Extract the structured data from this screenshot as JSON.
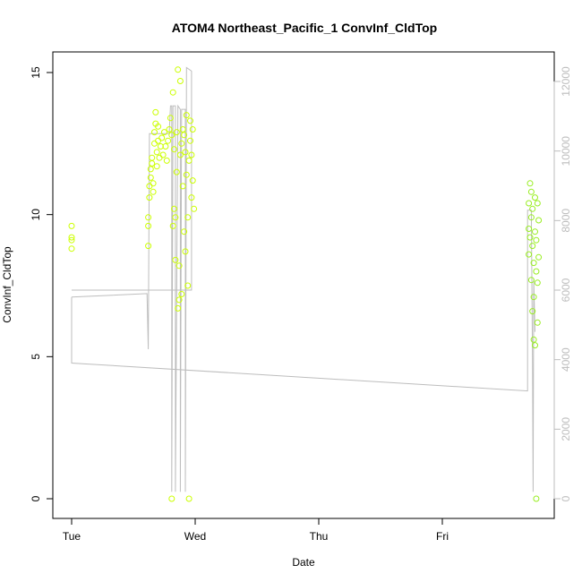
{
  "chart_data": {
    "type": "scatter",
    "title": "ATOM4 Northeast_Pacific_1 ConvInf_CldTop",
    "xlabel": "Date",
    "ylabel": "ConvInf_CldTop",
    "x_ticks": [
      "Tue",
      "Wed",
      "Thu",
      "Fri"
    ],
    "x_range_days": [
      0,
      3.78
    ],
    "ylim": [
      0,
      15.5
    ],
    "y_ticks": [
      0,
      5,
      10,
      15
    ],
    "y2lim": [
      0,
      12400
    ],
    "y2_ticks": [
      0,
      2000,
      4000,
      6000,
      8000,
      10000,
      12000
    ],
    "grid": false,
    "legend": "none",
    "colors": {
      "points_early": "#ccff00",
      "points_late": "#99ee22",
      "line": "#bdbdbd",
      "axes": "#000000",
      "right_axis": "#bdbdbd"
    },
    "series": [
      {
        "values_note_x_days_y_value": true,
        "points": [
          [
            0.0,
            9.6
          ],
          [
            0.0,
            9.2
          ],
          [
            0.0,
            9.1
          ],
          [
            0.0,
            8.8
          ],
          [
            0.62,
            8.9
          ],
          [
            0.62,
            9.6
          ],
          [
            0.62,
            9.9
          ],
          [
            0.63,
            10.6
          ],
          [
            0.63,
            11.0
          ],
          [
            0.64,
            11.3
          ],
          [
            0.64,
            11.6
          ],
          [
            0.65,
            12.0
          ],
          [
            0.65,
            11.8
          ],
          [
            0.66,
            10.8
          ],
          [
            0.66,
            11.1
          ],
          [
            0.67,
            12.5
          ],
          [
            0.67,
            12.9
          ],
          [
            0.68,
            13.2
          ],
          [
            0.68,
            13.6
          ],
          [
            0.69,
            12.2
          ],
          [
            0.69,
            11.7
          ],
          [
            0.7,
            12.6
          ],
          [
            0.7,
            13.1
          ],
          [
            0.71,
            12.0
          ],
          [
            0.72,
            12.4
          ],
          [
            0.73,
            12.7
          ],
          [
            0.74,
            12.1
          ],
          [
            0.75,
            12.9
          ],
          [
            0.76,
            12.4
          ],
          [
            0.77,
            11.9
          ],
          [
            0.78,
            12.6
          ],
          [
            0.79,
            13.0
          ],
          [
            0.8,
            13.4
          ],
          [
            0.81,
            12.8
          ],
          [
            0.81,
            0.0
          ],
          [
            0.82,
            14.3
          ],
          [
            0.82,
            9.6
          ],
          [
            0.83,
            10.2
          ],
          [
            0.83,
            12.3
          ],
          [
            0.84,
            8.4
          ],
          [
            0.84,
            9.9
          ],
          [
            0.85,
            11.5
          ],
          [
            0.85,
            12.9
          ],
          [
            0.86,
            15.1
          ],
          [
            0.86,
            6.7
          ],
          [
            0.87,
            7.0
          ],
          [
            0.87,
            8.2
          ],
          [
            0.88,
            14.7
          ],
          [
            0.88,
            12.1
          ],
          [
            0.89,
            12.5
          ],
          [
            0.89,
            7.2
          ],
          [
            0.9,
            11.0
          ],
          [
            0.9,
            13.0
          ],
          [
            0.91,
            9.4
          ],
          [
            0.91,
            12.8
          ],
          [
            0.92,
            12.2
          ],
          [
            0.92,
            8.7
          ],
          [
            0.93,
            13.5
          ],
          [
            0.93,
            11.4
          ],
          [
            0.94,
            9.9
          ],
          [
            0.94,
            7.5
          ],
          [
            0.95,
            0.0
          ],
          [
            0.95,
            11.9
          ],
          [
            0.96,
            12.6
          ],
          [
            0.96,
            13.3
          ],
          [
            0.97,
            10.6
          ],
          [
            0.97,
            12.1
          ],
          [
            0.98,
            11.2
          ],
          [
            0.98,
            13.0
          ],
          [
            0.99,
            10.2
          ],
          [
            3.7,
            10.4
          ],
          [
            3.7,
            9.5
          ],
          [
            3.7,
            8.6
          ],
          [
            3.71,
            11.1
          ],
          [
            3.71,
            9.2
          ],
          [
            3.72,
            10.8
          ],
          [
            3.72,
            9.9
          ],
          [
            3.72,
            7.7
          ],
          [
            3.73,
            10.2
          ],
          [
            3.73,
            8.9
          ],
          [
            3.73,
            6.6
          ],
          [
            3.74,
            5.6
          ],
          [
            3.74,
            7.1
          ],
          [
            3.74,
            8.3
          ],
          [
            3.75,
            10.6
          ],
          [
            3.75,
            9.4
          ],
          [
            3.75,
            5.4
          ],
          [
            3.76,
            0.0
          ],
          [
            3.76,
            8.0
          ],
          [
            3.76,
            9.1
          ],
          [
            3.77,
            10.4
          ],
          [
            3.77,
            7.6
          ],
          [
            3.77,
            6.2
          ],
          [
            3.78,
            8.5
          ],
          [
            3.78,
            9.8
          ]
        ]
      }
    ],
    "line_series_right_axis": [
      [
        0.0,
        5800
      ],
      [
        0.0,
        3900
      ],
      [
        3.69,
        3100
      ],
      [
        3.69,
        8300
      ],
      [
        3.72,
        8300
      ],
      [
        3.73,
        4000
      ],
      [
        3.735,
        200
      ],
      [
        3.74,
        6300
      ],
      [
        3.75,
        4800
      ]
    ],
    "line_series_right_axis_wed_block": [
      [
        0.0,
        5800
      ],
      [
        0.61,
        5900
      ],
      [
        0.62,
        4300
      ],
      [
        0.63,
        10500
      ],
      [
        0.79,
        10500
      ],
      [
        0.8,
        11300
      ],
      [
        0.81,
        11300
      ],
      [
        0.81,
        200
      ],
      [
        0.82,
        11300
      ],
      [
        0.84,
        11300
      ],
      [
        0.84,
        200
      ],
      [
        0.86,
        11300
      ],
      [
        0.88,
        11200
      ],
      [
        0.88,
        200
      ],
      [
        0.89,
        11200
      ],
      [
        0.92,
        11200
      ],
      [
        0.92,
        200
      ],
      [
        0.93,
        12400
      ],
      [
        0.97,
        12300
      ],
      [
        0.97,
        6000
      ],
      [
        0.0,
        6000
      ]
    ]
  }
}
